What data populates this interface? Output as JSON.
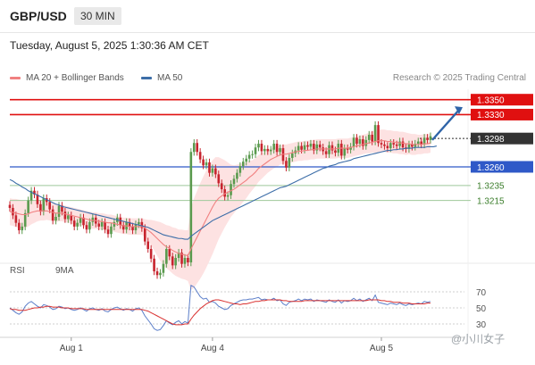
{
  "header": {
    "symbol": "GBP/USD",
    "timeframe": "30 MIN",
    "datetime": "Tuesday, August 5, 2025 1:30:36 AM CET"
  },
  "legend": {
    "ma20_bb": "MA 20 + Bollinger Bands",
    "ma50": "MA 50",
    "copyright": "Research © 2025 Trading Central"
  },
  "rsi_legend": {
    "rsi": "RSI",
    "ma9": "9MA"
  },
  "watermark": "@小川女子",
  "colors": {
    "up": "#5a9a4e",
    "down": "#c7242e",
    "ma20": "#f08080",
    "ma50": "#3d6ea8",
    "band": "#fde2e2",
    "resistance": "#e01010",
    "support_blue": "#2f59c8",
    "support_green": "#9ec89a",
    "current_label": "#333333",
    "rsi_line": "#5b7ec9",
    "rsi_ma": "#d9302f"
  },
  "chart_data": [
    {
      "type": "candlestick",
      "title": "GBP/USD",
      "timeframe": "30 MIN",
      "x_ticks": [
        "Aug 1",
        "Aug 4",
        "Aug 5"
      ],
      "ylim": [
        1.3138,
        1.3364
      ],
      "levels": [
        {
          "value": 1.335,
          "label": "1.3350",
          "kind": "resistance"
        },
        {
          "value": 1.333,
          "label": "1.3330",
          "kind": "resistance"
        },
        {
          "value": 1.3298,
          "label": "1.3298",
          "kind": "current"
        },
        {
          "value": 1.326,
          "label": "1.3260",
          "kind": "support"
        },
        {
          "value": 1.3235,
          "label": "1.3235",
          "kind": "support_minor"
        },
        {
          "value": 1.3215,
          "label": "1.3215",
          "kind": "support_minor"
        }
      ],
      "projection": {
        "from": 1.3296,
        "to": 1.334
      },
      "close": [
        1.3205,
        1.3195,
        1.3185,
        1.3175,
        1.318,
        1.3198,
        1.3215,
        1.3228,
        1.3223,
        1.321,
        1.32,
        1.3218,
        1.3213,
        1.3203,
        1.3188,
        1.3193,
        1.3208,
        1.32,
        1.319,
        1.3195,
        1.3188,
        1.318,
        1.3185,
        1.3192,
        1.3182,
        1.3176,
        1.3186,
        1.3192,
        1.3184,
        1.318,
        1.3186,
        1.3176,
        1.317,
        1.318,
        1.3186,
        1.3192,
        1.3182,
        1.3176,
        1.3186,
        1.318,
        1.3175,
        1.3183,
        1.3186,
        1.3178,
        1.316,
        1.315,
        1.3137,
        1.312,
        1.3115,
        1.3118,
        1.313,
        1.315,
        1.314,
        1.3128,
        1.3138,
        1.3145,
        1.313,
        1.3138,
        1.3132,
        1.328,
        1.3292,
        1.328,
        1.327,
        1.3262,
        1.3266,
        1.3252,
        1.3258,
        1.325,
        1.3238,
        1.323,
        1.322,
        1.3222,
        1.3237,
        1.3244,
        1.3252,
        1.3261,
        1.3267,
        1.3271,
        1.3276,
        1.3277,
        1.3286,
        1.3291,
        1.3281,
        1.3284,
        1.3281,
        1.3283,
        1.3291,
        1.328,
        1.3285,
        1.3268,
        1.3259,
        1.3272,
        1.3278,
        1.3282,
        1.3288,
        1.3283,
        1.3289,
        1.3287,
        1.3291,
        1.3282,
        1.329,
        1.3286,
        1.3281,
        1.3277,
        1.3289,
        1.3282,
        1.3279,
        1.3291,
        1.3275,
        1.3285,
        1.3283,
        1.3287,
        1.3299,
        1.3291,
        1.3297,
        1.3288,
        1.3296,
        1.3303,
        1.3294,
        1.3316,
        1.3292,
        1.329,
        1.3288,
        1.3285,
        1.3292,
        1.329,
        1.3288,
        1.3294,
        1.3286,
        1.3284,
        1.329,
        1.3287,
        1.3291,
        1.3294,
        1.329,
        1.3299,
        1.3296,
        1.3301
      ],
      "ma20": [
        1.32,
        1.3199,
        1.3198,
        1.3197,
        1.3196,
        1.3196,
        1.3197,
        1.3199,
        1.32,
        1.3201,
        1.3201,
        1.3201,
        1.3201,
        1.32,
        1.3199,
        1.3198,
        1.3198,
        1.3198,
        1.3197,
        1.3196,
        1.3195,
        1.3194,
        1.3193,
        1.3192,
        1.3191,
        1.319,
        1.3189,
        1.3188,
        1.3188,
        1.3187,
        1.3187,
        1.3186,
        1.3185,
        1.3185,
        1.3184,
        1.3183,
        1.3182,
        1.3181,
        1.3181,
        1.318,
        1.318,
        1.318,
        1.318,
        1.318,
        1.3178,
        1.3175,
        1.3172,
        1.3168,
        1.3164,
        1.316,
        1.3156,
        1.3153,
        1.3151,
        1.3148,
        1.3146,
        1.3144,
        1.3143,
        1.3142,
        1.3141,
        1.315,
        1.3158,
        1.3166,
        1.3174,
        1.3182,
        1.319,
        1.3198,
        1.3206,
        1.3213,
        1.3218,
        1.3221,
        1.3224,
        1.3226,
        1.3228,
        1.323,
        1.3233,
        1.3236,
        1.3239,
        1.3242,
        1.3246,
        1.3249,
        1.3253,
        1.3258,
        1.3261,
        1.3264,
        1.3267,
        1.327,
        1.3272,
        1.3274,
        1.3276,
        1.3277,
        1.3277,
        1.3278,
        1.3279,
        1.328,
        1.3281,
        1.3281,
        1.3282,
        1.3282,
        1.3283,
        1.3283,
        1.3284,
        1.3284,
        1.3284,
        1.3284,
        1.3284,
        1.3284,
        1.3284,
        1.3285,
        1.3285,
        1.3285,
        1.3285,
        1.3286,
        1.3287,
        1.3288,
        1.3289,
        1.329,
        1.3291,
        1.3292,
        1.3293,
        1.3294,
        1.3295,
        1.3295,
        1.3295,
        1.3294,
        1.3294,
        1.3293,
        1.3293,
        1.3292,
        1.3292,
        1.3291,
        1.3291,
        1.329,
        1.329,
        1.329,
        1.329,
        1.3291,
        1.3291,
        1.3292
      ],
      "ma50": [
        1.3243,
        1.3241,
        1.3238,
        1.3236,
        1.3233,
        1.3231,
        1.3228,
        1.3226,
        1.3224,
        1.3222,
        1.322,
        1.3218,
        1.3216,
        1.3214,
        1.3212,
        1.321,
        1.3209,
        1.3207,
        1.3206,
        1.3205,
        1.3204,
        1.3203,
        1.3202,
        1.3201,
        1.32,
        1.3199,
        1.3198,
        1.3197,
        1.3196,
        1.3195,
        1.3194,
        1.3193,
        1.3192,
        1.3191,
        1.319,
        1.3189,
        1.3188,
        1.3187,
        1.3186,
        1.3185,
        1.3184,
        1.3183,
        1.3182,
        1.3181,
        1.318,
        1.3179,
        1.3177,
        1.3175,
        1.3173,
        1.3171,
        1.3169,
        1.3168,
        1.3167,
        1.3166,
        1.3165,
        1.3164,
        1.3164,
        1.3163,
        1.3163,
        1.3167,
        1.317,
        1.3173,
        1.3176,
        1.3179,
        1.3182,
        1.3185,
        1.3188,
        1.319,
        1.3192,
        1.3194,
        1.3196,
        1.3198,
        1.32,
        1.3202,
        1.3204,
        1.3206,
        1.3208,
        1.321,
        1.3212,
        1.3214,
        1.3216,
        1.3218,
        1.322,
        1.3222,
        1.3224,
        1.3226,
        1.3228,
        1.323,
        1.3232,
        1.3233,
        1.3234,
        1.3236,
        1.3238,
        1.324,
        1.3242,
        1.3244,
        1.3246,
        1.3248,
        1.325,
        1.3252,
        1.3254,
        1.3256,
        1.3258,
        1.3259,
        1.3261,
        1.3262,
        1.3263,
        1.3265,
        1.3266,
        1.3267,
        1.3268,
        1.3269,
        1.3271,
        1.3272,
        1.3273,
        1.3274,
        1.3275,
        1.3276,
        1.3277,
        1.3278,
        1.3279,
        1.328,
        1.3281,
        1.3282,
        1.3282,
        1.3283,
        1.3283,
        1.3284,
        1.3284,
        1.3285,
        1.3285,
        1.3285,
        1.3286,
        1.3286,
        1.3286,
        1.3286,
        1.3287,
        1.3287,
        1.3287,
        1.3288
      ],
      "band_width": [
        0.0018,
        0.0018,
        0.0019,
        0.0019,
        0.0019,
        0.0018,
        0.0017,
        0.0016,
        0.0015,
        0.0014,
        0.0013,
        0.0013,
        0.0012,
        0.0012,
        0.0012,
        0.0012,
        0.0011,
        0.0011,
        0.0011,
        0.0011,
        0.0011,
        0.0011,
        0.0011,
        0.0011,
        0.0011,
        0.0011,
        0.0011,
        0.0011,
        0.0011,
        0.0011,
        0.0011,
        0.0011,
        0.0011,
        0.0011,
        0.0011,
        0.0011,
        0.0011,
        0.0011,
        0.0011,
        0.0011,
        0.0011,
        0.0011,
        0.0011,
        0.0011,
        0.0012,
        0.0014,
        0.0017,
        0.002,
        0.0023,
        0.0026,
        0.0028,
        0.0029,
        0.003,
        0.0031,
        0.0032,
        0.0032,
        0.0033,
        0.0033,
        0.0034,
        0.0055,
        0.006,
        0.0062,
        0.0064,
        0.0065,
        0.0065,
        0.0064,
        0.0063,
        0.006,
        0.0055,
        0.005,
        0.0045,
        0.004,
        0.0035,
        0.0032,
        0.003,
        0.0028,
        0.0026,
        0.0024,
        0.0022,
        0.002,
        0.0019,
        0.0018,
        0.0017,
        0.0016,
        0.0015,
        0.0015,
        0.0014,
        0.0014,
        0.0013,
        0.0013,
        0.0013,
        0.0013,
        0.0013,
        0.0013,
        0.0013,
        0.0013,
        0.0013,
        0.0013,
        0.0013,
        0.0013,
        0.0013,
        0.0013,
        0.0013,
        0.0013,
        0.0013,
        0.0013,
        0.0013,
        0.0013,
        0.0013,
        0.0013,
        0.0013,
        0.0013,
        0.0013,
        0.0013,
        0.0013,
        0.0013,
        0.0013,
        0.0014,
        0.0014,
        0.0015,
        0.0015,
        0.0015,
        0.0015,
        0.0015,
        0.0015,
        0.0015,
        0.0015,
        0.0015,
        0.0015,
        0.0015,
        0.0014,
        0.0014,
        0.0014,
        0.0013,
        0.0013,
        0.0013,
        0.0013,
        0.0013,
        0.0013,
        0.0013
      ]
    },
    {
      "type": "line",
      "title": "RSI",
      "ylim": [
        20,
        80
      ],
      "y_ticks": [
        70,
        50,
        30
      ],
      "series": [
        {
          "name": "RSI",
          "values": [
            50,
            47,
            44,
            42,
            45,
            52,
            56,
            58,
            55,
            52,
            50,
            54,
            53,
            51,
            48,
            49,
            52,
            51,
            49,
            50,
            48,
            47,
            48,
            50,
            48,
            46,
            49,
            50,
            48,
            47,
            49,
            46,
            45,
            48,
            50,
            51,
            49,
            47,
            49,
            48,
            46,
            49,
            50,
            47,
            40,
            35,
            30,
            24,
            22,
            23,
            28,
            34,
            31,
            29,
            32,
            34,
            30,
            33,
            31,
            78,
            76,
            70,
            64,
            61,
            62,
            57,
            58,
            56,
            52,
            50,
            48,
            49,
            53,
            55,
            57,
            59,
            60,
            60,
            61,
            61,
            62,
            63,
            60,
            61,
            60,
            60,
            62,
            59,
            60,
            55,
            53,
            57,
            58,
            59,
            61,
            59,
            61,
            60,
            61,
            58,
            60,
            59,
            58,
            57,
            60,
            58,
            57,
            60,
            56,
            59,
            58,
            59,
            62,
            59,
            61,
            58,
            60,
            62,
            59,
            66,
            57,
            56,
            55,
            54,
            56,
            55,
            54,
            56,
            54,
            53,
            55,
            54,
            55,
            56,
            55,
            58,
            57,
            58
          ]
        },
        {
          "name": "9MA",
          "values": [
            49,
            48,
            48,
            47,
            47,
            47,
            48,
            49,
            50,
            50,
            51,
            51,
            52,
            52,
            51,
            51,
            51,
            50,
            50,
            50,
            49,
            49,
            49,
            49,
            49,
            48,
            48,
            48,
            48,
            48,
            48,
            48,
            48,
            48,
            48,
            48,
            48,
            48,
            48,
            48,
            48,
            48,
            48,
            48,
            47,
            46,
            44,
            42,
            40,
            38,
            36,
            34,
            32,
            30,
            29,
            29,
            29,
            30,
            30,
            36,
            41,
            45,
            49,
            52,
            55,
            57,
            59,
            60,
            60,
            59,
            58,
            57,
            56,
            55,
            55,
            54,
            55,
            55,
            56,
            57,
            58,
            58,
            59,
            59,
            60,
            60,
            60,
            60,
            60,
            59,
            59,
            58,
            58,
            58,
            58,
            58,
            59,
            59,
            59,
            59,
            59,
            59,
            59,
            59,
            59,
            59,
            59,
            59,
            59,
            59,
            59,
            59,
            59,
            59,
            59,
            59,
            59,
            60,
            60,
            60,
            60,
            59,
            59,
            58,
            58,
            57,
            57,
            57,
            56,
            56,
            56,
            55,
            55,
            55,
            55,
            55,
            56,
            56
          ]
        }
      ]
    }
  ]
}
